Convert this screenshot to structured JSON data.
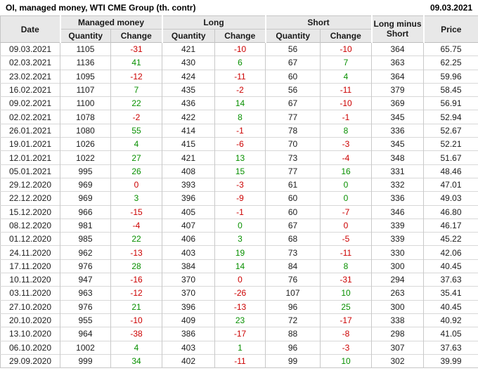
{
  "title": "OI, managed money, WTI CME Group (th. contr)",
  "report_date": "09.03.2021",
  "colors": {
    "negative_change": "#cc0000",
    "positive_change": "#089000",
    "header_bg": "#e8e8e8",
    "grid_line": "#c9c9c9"
  },
  "header": {
    "date": "Date",
    "managed_money": "Managed money",
    "long": "Long",
    "short": "Short",
    "long_minus_short": "Long minus Short",
    "price": "Price",
    "quantity": "Quantity",
    "change": "Change"
  },
  "table": {
    "rows": [
      {
        "date": "09.03.2021",
        "mm_q": "1105",
        "mm_c": "-31",
        "mm_s": "neg",
        "l_q": "421",
        "l_c": "-10",
        "l_s": "neg",
        "s_q": "56",
        "s_c": "-10",
        "s_s": "neg",
        "lms": "364",
        "price": "65.75"
      },
      {
        "date": "02.03.2021",
        "mm_q": "1136",
        "mm_c": "41",
        "mm_s": "pos",
        "l_q": "430",
        "l_c": "6",
        "l_s": "pos",
        "s_q": "67",
        "s_c": "7",
        "s_s": "pos",
        "lms": "363",
        "price": "62.25"
      },
      {
        "date": "23.02.2021",
        "mm_q": "1095",
        "mm_c": "-12",
        "mm_s": "neg",
        "l_q": "424",
        "l_c": "-11",
        "l_s": "neg",
        "s_q": "60",
        "s_c": "4",
        "s_s": "pos",
        "lms": "364",
        "price": "59.96"
      },
      {
        "date": "16.02.2021",
        "mm_q": "1107",
        "mm_c": "7",
        "mm_s": "pos",
        "l_q": "435",
        "l_c": "-2",
        "l_s": "neg",
        "s_q": "56",
        "s_c": "-11",
        "s_s": "neg",
        "lms": "379",
        "price": "58.45"
      },
      {
        "date": "09.02.2021",
        "mm_q": "1100",
        "mm_c": "22",
        "mm_s": "pos",
        "l_q": "436",
        "l_c": "14",
        "l_s": "pos",
        "s_q": "67",
        "s_c": "-10",
        "s_s": "neg",
        "lms": "369",
        "price": "56.91"
      },
      {
        "date": "02.02.2021",
        "mm_q": "1078",
        "mm_c": "-2",
        "mm_s": "neg",
        "l_q": "422",
        "l_c": "8",
        "l_s": "pos",
        "s_q": "77",
        "s_c": "-1",
        "s_s": "neg",
        "lms": "345",
        "price": "52.94"
      },
      {
        "date": "26.01.2021",
        "mm_q": "1080",
        "mm_c": "55",
        "mm_s": "pos",
        "l_q": "414",
        "l_c": "-1",
        "l_s": "neg",
        "s_q": "78",
        "s_c": "8",
        "s_s": "pos",
        "lms": "336",
        "price": "52.67"
      },
      {
        "date": "19.01.2021",
        "mm_q": "1026",
        "mm_c": "4",
        "mm_s": "pos",
        "l_q": "415",
        "l_c": "-6",
        "l_s": "neg",
        "s_q": "70",
        "s_c": "-3",
        "s_s": "neg",
        "lms": "345",
        "price": "52.21"
      },
      {
        "date": "12.01.2021",
        "mm_q": "1022",
        "mm_c": "27",
        "mm_s": "pos",
        "l_q": "421",
        "l_c": "13",
        "l_s": "pos",
        "s_q": "73",
        "s_c": "-4",
        "s_s": "neg",
        "lms": "348",
        "price": "51.67"
      },
      {
        "date": "05.01.2021",
        "mm_q": "995",
        "mm_c": "26",
        "mm_s": "pos",
        "l_q": "408",
        "l_c": "15",
        "l_s": "pos",
        "s_q": "77",
        "s_c": "16",
        "s_s": "pos",
        "lms": "331",
        "price": "48.46"
      },
      {
        "date": "29.12.2020",
        "mm_q": "969",
        "mm_c": "0",
        "mm_s": "neg",
        "l_q": "393",
        "l_c": "-3",
        "l_s": "neg",
        "s_q": "61",
        "s_c": "0",
        "s_s": "pos",
        "lms": "332",
        "price": "47.01"
      },
      {
        "date": "22.12.2020",
        "mm_q": "969",
        "mm_c": "3",
        "mm_s": "pos",
        "l_q": "396",
        "l_c": "-9",
        "l_s": "neg",
        "s_q": "60",
        "s_c": "0",
        "s_s": "pos",
        "lms": "336",
        "price": "49.03"
      },
      {
        "date": "15.12.2020",
        "mm_q": "966",
        "mm_c": "-15",
        "mm_s": "neg",
        "l_q": "405",
        "l_c": "-1",
        "l_s": "neg",
        "s_q": "60",
        "s_c": "-7",
        "s_s": "neg",
        "lms": "346",
        "price": "46.80"
      },
      {
        "date": "08.12.2020",
        "mm_q": "981",
        "mm_c": "-4",
        "mm_s": "neg",
        "l_q": "407",
        "l_c": "0",
        "l_s": "pos",
        "s_q": "67",
        "s_c": "0",
        "s_s": "neg",
        "lms": "339",
        "price": "46.17"
      },
      {
        "date": "01.12.2020",
        "mm_q": "985",
        "mm_c": "22",
        "mm_s": "pos",
        "l_q": "406",
        "l_c": "3",
        "l_s": "pos",
        "s_q": "68",
        "s_c": "-5",
        "s_s": "neg",
        "lms": "339",
        "price": "45.22"
      },
      {
        "date": "24.11.2020",
        "mm_q": "962",
        "mm_c": "-13",
        "mm_s": "neg",
        "l_q": "403",
        "l_c": "19",
        "l_s": "pos",
        "s_q": "73",
        "s_c": "-11",
        "s_s": "neg",
        "lms": "330",
        "price": "42.06"
      },
      {
        "date": "17.11.2020",
        "mm_q": "976",
        "mm_c": "28",
        "mm_s": "pos",
        "l_q": "384",
        "l_c": "14",
        "l_s": "pos",
        "s_q": "84",
        "s_c": "8",
        "s_s": "pos",
        "lms": "300",
        "price": "40.45"
      },
      {
        "date": "10.11.2020",
        "mm_q": "947",
        "mm_c": "-16",
        "mm_s": "neg",
        "l_q": "370",
        "l_c": "0",
        "l_s": "neg",
        "s_q": "76",
        "s_c": "-31",
        "s_s": "neg",
        "lms": "294",
        "price": "37.63"
      },
      {
        "date": "03.11.2020",
        "mm_q": "963",
        "mm_c": "-12",
        "mm_s": "neg",
        "l_q": "370",
        "l_c": "-26",
        "l_s": "neg",
        "s_q": "107",
        "s_c": "10",
        "s_s": "pos",
        "lms": "263",
        "price": "35.41"
      },
      {
        "date": "27.10.2020",
        "mm_q": "976",
        "mm_c": "21",
        "mm_s": "pos",
        "l_q": "396",
        "l_c": "-13",
        "l_s": "neg",
        "s_q": "96",
        "s_c": "25",
        "s_s": "pos",
        "lms": "300",
        "price": "40.45"
      },
      {
        "date": "20.10.2020",
        "mm_q": "955",
        "mm_c": "-10",
        "mm_s": "neg",
        "l_q": "409",
        "l_c": "23",
        "l_s": "pos",
        "s_q": "72",
        "s_c": "-17",
        "s_s": "neg",
        "lms": "338",
        "price": "40.92"
      },
      {
        "date": "13.10.2020",
        "mm_q": "964",
        "mm_c": "-38",
        "mm_s": "neg",
        "l_q": "386",
        "l_c": "-17",
        "l_s": "neg",
        "s_q": "88",
        "s_c": "-8",
        "s_s": "neg",
        "lms": "298",
        "price": "41.05"
      },
      {
        "date": "06.10.2020",
        "mm_q": "1002",
        "mm_c": "4",
        "mm_s": "pos",
        "l_q": "403",
        "l_c": "1",
        "l_s": "pos",
        "s_q": "96",
        "s_c": "-3",
        "s_s": "neg",
        "lms": "307",
        "price": "37.63"
      },
      {
        "date": "29.09.2020",
        "mm_q": "999",
        "mm_c": "34",
        "mm_s": "pos",
        "l_q": "402",
        "l_c": "-11",
        "l_s": "neg",
        "s_q": "99",
        "s_c": "10",
        "s_s": "pos",
        "lms": "302",
        "price": "39.99"
      }
    ]
  }
}
